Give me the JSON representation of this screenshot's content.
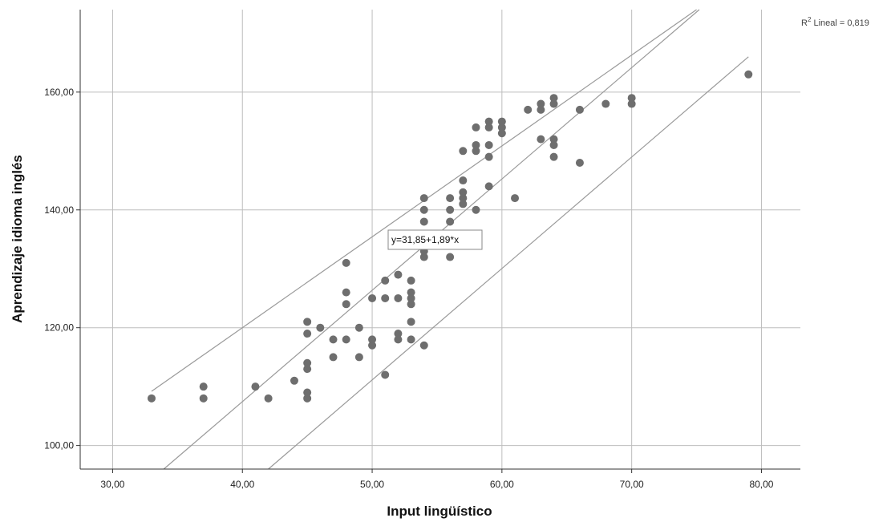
{
  "chart_data": {
    "type": "scatter",
    "xlabel": "Input lingüístico",
    "ylabel": "Aprendizaje idioma inglés",
    "xlim": [
      27.5,
      83
    ],
    "ylim": [
      96,
      174
    ],
    "xticks": [
      30,
      40,
      50,
      60,
      70,
      80
    ],
    "yticks": [
      100,
      120,
      140,
      160
    ],
    "xtick_labels": [
      "30,00",
      "40,00",
      "50,00",
      "60,00",
      "70,00",
      "80,00"
    ],
    "ytick_labels": [
      "100,00",
      "120,00",
      "140,00",
      "160,00"
    ],
    "grid": true,
    "point_color": "#6e6e6e",
    "line_color": "#9a9a9a",
    "points": [
      [
        33,
        108
      ],
      [
        37,
        110
      ],
      [
        37,
        108
      ],
      [
        41,
        110
      ],
      [
        42,
        108
      ],
      [
        44,
        111
      ],
      [
        45,
        121
      ],
      [
        45,
        119
      ],
      [
        45,
        114
      ],
      [
        45,
        113
      ],
      [
        45,
        109
      ],
      [
        45,
        108
      ],
      [
        46,
        120
      ],
      [
        47,
        118
      ],
      [
        47,
        115
      ],
      [
        48,
        131
      ],
      [
        48,
        126
      ],
      [
        48,
        124
      ],
      [
        48,
        118
      ],
      [
        49,
        120
      ],
      [
        49,
        115
      ],
      [
        50,
        125
      ],
      [
        50,
        118
      ],
      [
        50,
        117
      ],
      [
        51,
        128
      ],
      [
        51,
        125
      ],
      [
        51,
        112
      ],
      [
        52,
        129
      ],
      [
        52,
        125
      ],
      [
        52,
        119
      ],
      [
        52,
        118
      ],
      [
        53,
        128
      ],
      [
        53,
        126
      ],
      [
        53,
        125
      ],
      [
        53,
        124
      ],
      [
        53,
        121
      ],
      [
        53,
        118
      ],
      [
        54,
        142
      ],
      [
        54,
        140
      ],
      [
        54,
        138
      ],
      [
        54,
        133
      ],
      [
        54,
        132
      ],
      [
        54,
        117
      ],
      [
        56,
        142
      ],
      [
        56,
        140
      ],
      [
        56,
        138
      ],
      [
        56,
        132
      ],
      [
        57,
        150
      ],
      [
        57,
        145
      ],
      [
        57,
        143
      ],
      [
        57,
        142
      ],
      [
        57,
        141
      ],
      [
        58,
        154
      ],
      [
        58,
        151
      ],
      [
        58,
        150
      ],
      [
        58,
        140
      ],
      [
        59,
        155
      ],
      [
        59,
        154
      ],
      [
        59,
        151
      ],
      [
        59,
        149
      ],
      [
        59,
        144
      ],
      [
        60,
        155
      ],
      [
        60,
        154
      ],
      [
        60,
        153
      ],
      [
        61,
        142
      ],
      [
        62,
        157
      ],
      [
        63,
        158
      ],
      [
        63,
        157
      ],
      [
        63,
        152
      ],
      [
        64,
        159
      ],
      [
        64,
        158
      ],
      [
        64,
        152
      ],
      [
        64,
        151
      ],
      [
        64,
        149
      ],
      [
        66,
        157
      ],
      [
        66,
        148
      ],
      [
        68,
        158
      ],
      [
        70,
        159
      ],
      [
        70,
        158
      ],
      [
        79,
        163
      ]
    ],
    "fit": {
      "intercept": 31.85,
      "slope": 1.89,
      "equation_label": "y=31,85+1,89*x",
      "r2_label_prefix": "R",
      "r2_label_sup": "2",
      "r2_label_suffix": " Lineal = 0,819"
    },
    "interval_lines": [
      {
        "name": "upper",
        "x": [
          33,
          75
        ],
        "y": [
          109.2,
          174
        ]
      },
      {
        "name": "lower",
        "x": [
          42,
          79
        ],
        "y": [
          96,
          166
        ]
      }
    ]
  }
}
